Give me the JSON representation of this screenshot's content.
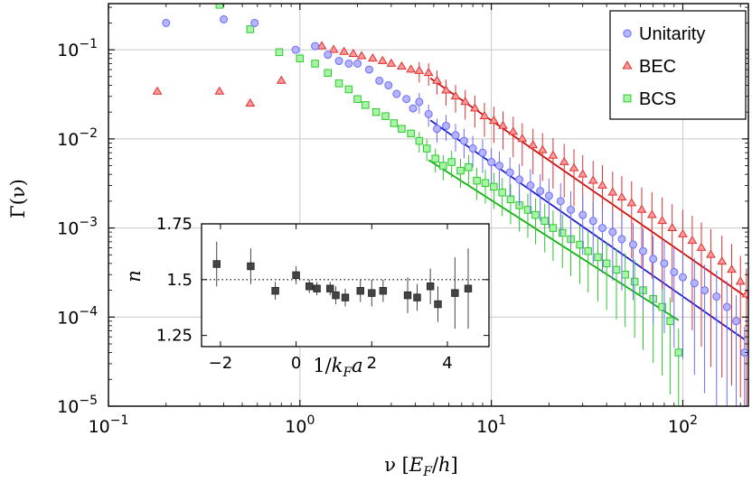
{
  "chart_data": [
    {
      "type": "scatter",
      "xlabel": "ν  [E_F/h]",
      "ylabel": "Γ(ν)",
      "xscale": "log",
      "yscale": "log",
      "xlim": [
        0.1,
        220
      ],
      "ylim": [
        1e-05,
        0.33
      ],
      "x_ticks": [
        {
          "value": 0.1,
          "mant": "10",
          "exp": "−1"
        },
        {
          "value": 1,
          "mant": "10",
          "exp": "0"
        },
        {
          "value": 10,
          "mant": "10",
          "exp": "1"
        },
        {
          "value": 100,
          "mant": "10",
          "exp": "2"
        }
      ],
      "y_ticks": [
        {
          "value": 0.1,
          "mant": "10",
          "exp": "−1"
        },
        {
          "value": 0.01,
          "mant": "10",
          "exp": "−2"
        },
        {
          "value": 0.001,
          "mant": "10",
          "exp": "−3"
        },
        {
          "value": 0.0001,
          "mant": "10",
          "exp": "−4"
        },
        {
          "value": 1e-05,
          "mant": "10",
          "exp": "−5"
        }
      ],
      "grid": true,
      "legend_position": "top-right",
      "series": [
        {
          "name": "Unitarity",
          "marker": "circle",
          "color": "#6b6bff",
          "fill": "#b4b4ff",
          "x": [
            0.2,
            0.4,
            0.58,
            0.95,
            1.2,
            1.4,
            1.6,
            1.8,
            2.0,
            2.3,
            2.6,
            2.9,
            3.2,
            3.6,
            3.9,
            4.2,
            4.7,
            5.2,
            5.8,
            6.5,
            7.2,
            8.0,
            9.0,
            10.0,
            11.0,
            12.5,
            14.0,
            16.0,
            18.0,
            20.0,
            23.0,
            26.0,
            30.0,
            34.0,
            38.0,
            43.0,
            48.0,
            55.0,
            62.0,
            70.0,
            80.0,
            90.0,
            100.0,
            115.0,
            130.0,
            150.0,
            170.0,
            190.0,
            210.0
          ],
          "y": [
            0.2,
            0.22,
            0.2,
            0.1,
            0.11,
            0.088,
            0.075,
            0.07,
            0.07,
            0.06,
            0.045,
            0.04,
            0.032,
            0.028,
            0.022,
            0.026,
            0.019,
            0.013,
            0.014,
            0.011,
            0.0095,
            0.0078,
            0.007,
            0.0055,
            0.005,
            0.0042,
            0.0035,
            0.003,
            0.0026,
            0.0023,
            0.002,
            0.0016,
            0.0014,
            0.0012,
            0.001,
            0.0009,
            0.00075,
            0.00065,
            0.00055,
            0.00045,
            0.0004,
            0.00032,
            0.00028,
            0.00024,
            0.0002,
            0.00017,
            0.00013,
            9e-05,
            4e-05
          ]
        },
        {
          "name": "BEC",
          "marker": "triangle",
          "color": "#e03030",
          "fill": "#ff9a9a",
          "x": [
            0.18,
            0.38,
            0.55,
            0.8,
            1.3,
            1.5,
            1.7,
            1.9,
            2.1,
            2.4,
            2.7,
            3.0,
            3.4,
            3.8,
            4.2,
            4.7,
            5.2,
            5.8,
            6.5,
            7.3,
            8.2,
            9.2,
            10.3,
            11.5,
            13.0,
            14.5,
            16.5,
            18.5,
            21.0,
            24.0,
            27.0,
            30.0,
            34.0,
            38.0,
            43.0,
            48.0,
            54.0,
            61.0,
            69.0,
            78.0,
            88.0,
            100.0,
            112.0,
            125.0,
            140.0,
            160.0,
            180.0,
            200.0,
            215.0
          ],
          "y": [
            0.034,
            0.034,
            0.025,
            0.045,
            0.11,
            0.1,
            0.095,
            0.09,
            0.085,
            0.08,
            0.075,
            0.07,
            0.065,
            0.06,
            0.058,
            0.055,
            0.045,
            0.035,
            0.03,
            0.026,
            0.022,
            0.018,
            0.016,
            0.014,
            0.012,
            0.01,
            0.0085,
            0.0075,
            0.0065,
            0.0055,
            0.0047,
            0.004,
            0.0034,
            0.003,
            0.0025,
            0.0022,
            0.0019,
            0.0016,
            0.0014,
            0.0012,
            0.001,
            0.00085,
            0.00072,
            0.0006,
            0.0005,
            0.00042,
            0.00034,
            0.00025,
            0.00018
          ]
        },
        {
          "name": "BCS",
          "marker": "square",
          "color": "#2cc82c",
          "fill": "#a8f5a8",
          "x": [
            0.38,
            0.55,
            0.78,
            1.0,
            1.2,
            1.4,
            1.6,
            1.8,
            2.0,
            2.2,
            2.5,
            2.8,
            3.1,
            3.4,
            3.8,
            4.2,
            4.6,
            5.1,
            5.6,
            6.2,
            6.9,
            7.6,
            8.4,
            9.3,
            10.3,
            11.4,
            12.6,
            14.0,
            15.5,
            17.0,
            19.0,
            21.0,
            23.5,
            26.0,
            29.0,
            32.0,
            36.0,
            40.0,
            45.0,
            50.0,
            56.0,
            62.0,
            70.0,
            78.0,
            86.0,
            95.0
          ],
          "y": [
            0.32,
            0.17,
            0.094,
            0.08,
            0.07,
            0.055,
            0.042,
            0.036,
            0.028,
            0.024,
            0.02,
            0.018,
            0.015,
            0.013,
            0.0115,
            0.0095,
            0.0078,
            0.006,
            0.005,
            0.0055,
            0.0044,
            0.0048,
            0.0034,
            0.0032,
            0.0029,
            0.0025,
            0.0021,
            0.0018,
            0.0016,
            0.0014,
            0.0012,
            0.001,
            0.00088,
            0.00075,
            0.00065,
            0.00055,
            0.00047,
            0.0004,
            0.00034,
            0.0003,
            0.00025,
            0.0002,
            0.00016,
            0.00013,
            9e-05,
            4e-05
          ]
        }
      ],
      "fit_lines": [
        {
          "series": "Unitarity",
          "color": "#2020cc",
          "x": [
            4.8,
            210
          ],
          "y": [
            0.0162,
            5.6e-05
          ]
        },
        {
          "series": "BEC",
          "color": "#cc1010",
          "x": [
            4.8,
            220
          ],
          "y": [
            0.048,
            0.000162
          ]
        },
        {
          "series": "BCS",
          "color": "#10b010",
          "x": [
            4.7,
            95
          ],
          "y": [
            0.0058,
            9.2e-05
          ]
        }
      ]
    },
    {
      "type": "scatter",
      "inset": true,
      "xlabel": "1/k_Fa",
      "ylabel": "n",
      "xlim": [
        -2.5,
        5.1
      ],
      "ylim": [
        1.2,
        1.75
      ],
      "x_ticks": [
        -2,
        0,
        2,
        4
      ],
      "y_ticks": [
        {
          "value": 1.75,
          "label": "1.75"
        },
        {
          "value": 1.5,
          "label": "1.5"
        },
        {
          "value": 1.25,
          "label": "1.25"
        }
      ],
      "reference_line": 1.5,
      "series": [
        {
          "name": "",
          "marker": "square",
          "color": "#333333",
          "x": [
            -2.1,
            -1.2,
            -0.55,
            0.0,
            0.35,
            0.55,
            0.9,
            1.05,
            1.3,
            1.7,
            2.0,
            2.3,
            2.95,
            3.2,
            3.55,
            3.75,
            4.2,
            4.55
          ],
          "y": [
            1.57,
            1.56,
            1.45,
            1.52,
            1.47,
            1.46,
            1.46,
            1.43,
            1.42,
            1.45,
            1.44,
            1.45,
            1.43,
            1.42,
            1.47,
            1.39,
            1.44,
            1.46
          ],
          "err": [
            0.1,
            0.08,
            0.04,
            0.04,
            0.03,
            0.03,
            0.03,
            0.04,
            0.04,
            0.05,
            0.06,
            0.05,
            0.08,
            0.06,
            0.08,
            0.08,
            0.16,
            0.18
          ]
        }
      ]
    }
  ]
}
